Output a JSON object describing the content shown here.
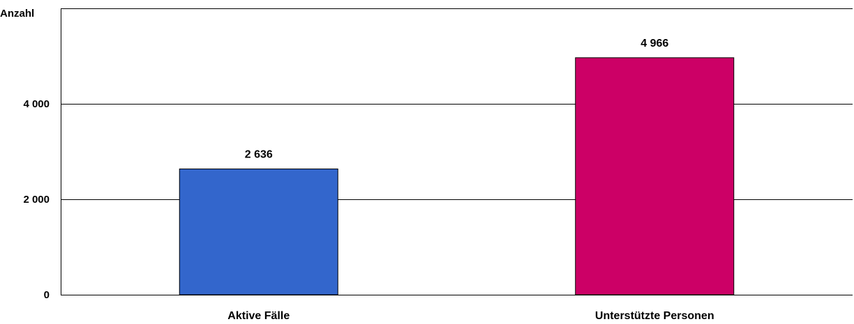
{
  "chart_data": {
    "type": "bar",
    "title": "",
    "xlabel": "",
    "ylabel": "Anzahl",
    "categories": [
      "Aktive Fälle",
      "Unterstützte Personen"
    ],
    "values": [
      2636,
      4966
    ],
    "value_labels": [
      "2 636",
      "4 966"
    ],
    "bar_colors": [
      "#3366CC",
      "#CC0066"
    ],
    "ylim": [
      0,
      6000
    ],
    "yticks": [
      0,
      2000,
      4000
    ],
    "ytick_labels": [
      "0",
      "2 000",
      "4 000"
    ],
    "grid": true,
    "legend": "none"
  }
}
